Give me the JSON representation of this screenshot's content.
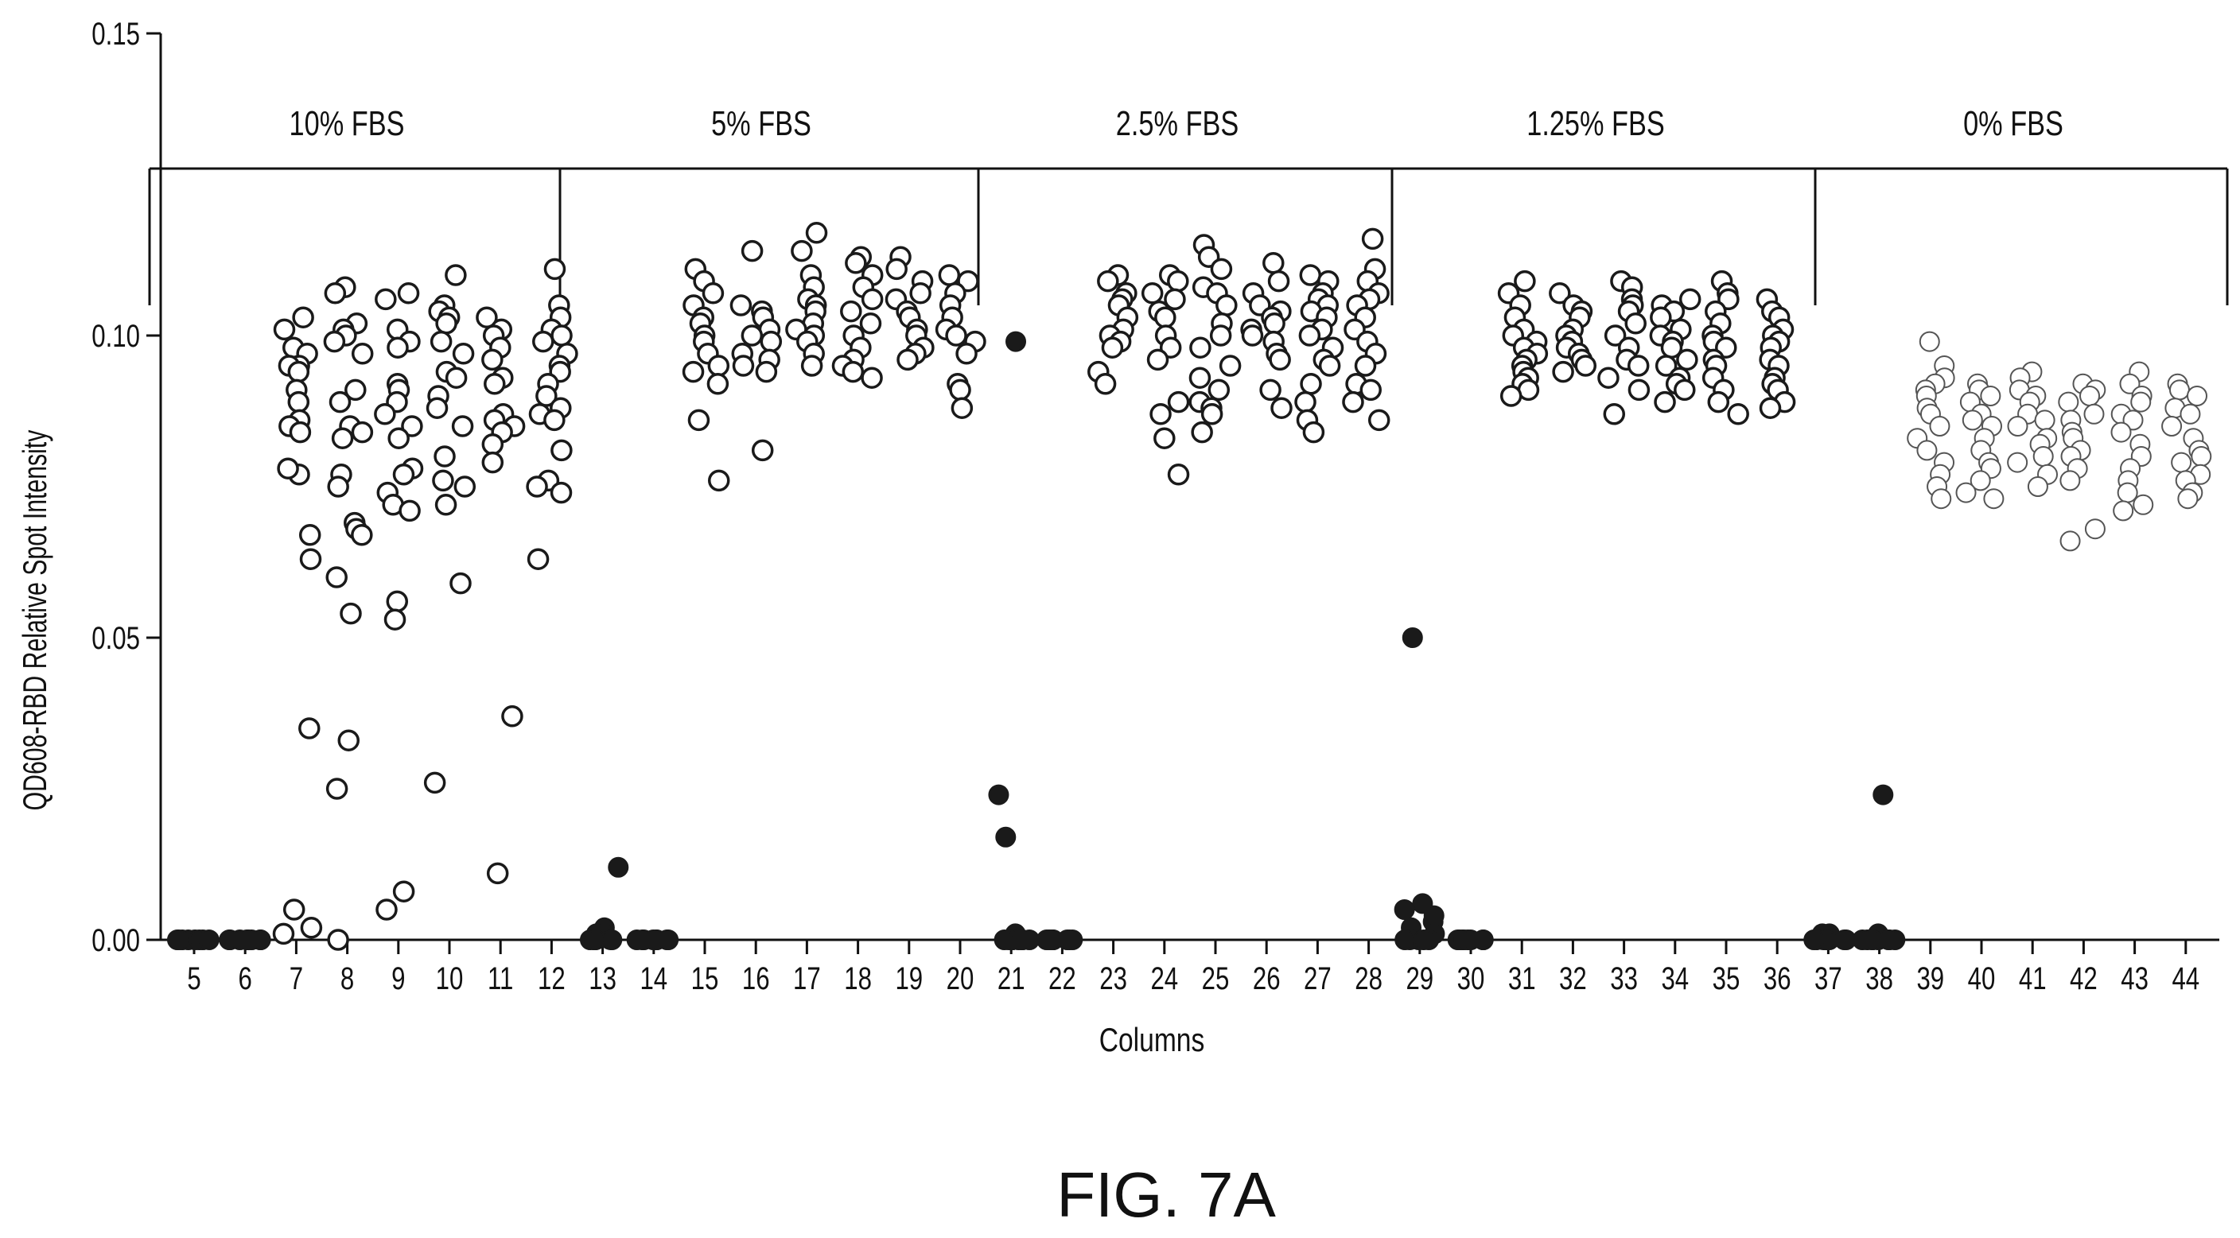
{
  "figure_label": "FIG. 7A",
  "chart_data": {
    "type": "scatter",
    "xlabel": "Columns",
    "ylabel": "QD608-RBD Relative Spot Intensity",
    "ylim": [
      0,
      0.15
    ],
    "yticks": [
      "0.00",
      "0.05",
      "0.10",
      "0.15"
    ],
    "categories": [
      "5",
      "6",
      "7",
      "8",
      "9",
      "10",
      "11",
      "12",
      "13",
      "14",
      "15",
      "16",
      "17",
      "18",
      "19",
      "20",
      "21",
      "22",
      "23",
      "24",
      "25",
      "26",
      "27",
      "28",
      "29",
      "30",
      "31",
      "32",
      "33",
      "34",
      "35",
      "36",
      "37",
      "38",
      "39",
      "40",
      "41",
      "42",
      "43",
      "44"
    ],
    "groups": [
      {
        "label": "10% FBS",
        "from": "5",
        "to": "12"
      },
      {
        "label": "5% FBS",
        "from": "13",
        "to": "20"
      },
      {
        "label": "2.5% FBS",
        "from": "21",
        "to": "28"
      },
      {
        "label": "1.25% FBS",
        "from": "29",
        "to": "36"
      },
      {
        "label": "0% FBS",
        "from": "37",
        "to": "44"
      }
    ],
    "grid": false,
    "legend": "none",
    "colors": {
      "open_marker_stroke": "#1a1a1a",
      "filled_marker": "#1a1a1a",
      "marker_fill_open": "#ffffff"
    },
    "series": [
      {
        "column": "5",
        "style": "filled",
        "values": [
          0,
          0,
          0,
          0,
          0,
          0,
          0,
          0
        ]
      },
      {
        "column": "6",
        "style": "filled",
        "values": [
          0,
          0,
          0,
          0,
          0,
          0,
          0,
          0
        ]
      },
      {
        "column": "7",
        "style": "open",
        "values": [
          0.103,
          0.101,
          0.098,
          0.097,
          0.095,
          0.095,
          0.094,
          0.091,
          0.089,
          0.086,
          0.085,
          0.084,
          0.077,
          0.078,
          0.067,
          0.063,
          0.035,
          0.005,
          0.002,
          0.001
        ]
      },
      {
        "column": "8",
        "style": "open",
        "values": [
          0.108,
          0.107,
          0.102,
          0.101,
          0.1,
          0.099,
          0.097,
          0.091,
          0.089,
          0.085,
          0.084,
          0.083,
          0.077,
          0.075,
          0.069,
          0.068,
          0.067,
          0.06,
          0.054,
          0.033,
          0.025,
          0
        ]
      },
      {
        "column": "9",
        "style": "open",
        "values": [
          0.107,
          0.106,
          0.101,
          0.099,
          0.098,
          0.092,
          0.091,
          0.089,
          0.087,
          0.085,
          0.083,
          0.078,
          0.077,
          0.074,
          0.072,
          0.071,
          0.056,
          0.053,
          0.008,
          0.005
        ]
      },
      {
        "column": "10",
        "style": "open",
        "values": [
          0.11,
          0.105,
          0.104,
          0.103,
          0.102,
          0.099,
          0.097,
          0.094,
          0.093,
          0.09,
          0.088,
          0.085,
          0.08,
          0.076,
          0.075,
          0.072,
          0.059,
          0.026
        ]
      },
      {
        "column": "11",
        "style": "open",
        "values": [
          0.103,
          0.101,
          0.1,
          0.098,
          0.096,
          0.093,
          0.092,
          0.087,
          0.086,
          0.085,
          0.084,
          0.082,
          0.079,
          0.037,
          0.011
        ]
      },
      {
        "column": "12",
        "style": "open",
        "values": [
          0.111,
          0.105,
          0.103,
          0.101,
          0.1,
          0.099,
          0.097,
          0.095,
          0.094,
          0.092,
          0.09,
          0.088,
          0.087,
          0.086,
          0.081,
          0.076,
          0.075,
          0.074,
          0.063
        ]
      },
      {
        "column": "13",
        "style": "filled",
        "values": [
          0.012,
          0.002,
          0.001,
          0.001,
          0,
          0,
          0,
          0,
          0,
          0
        ]
      },
      {
        "column": "14",
        "style": "filled",
        "values": [
          0,
          0,
          0,
          0,
          0,
          0,
          0,
          0
        ]
      },
      {
        "column": "15",
        "style": "open",
        "values": [
          0.111,
          0.109,
          0.107,
          0.105,
          0.103,
          0.102,
          0.1,
          0.099,
          0.097,
          0.095,
          0.094,
          0.092,
          0.086,
          0.076
        ]
      },
      {
        "column": "16",
        "style": "open",
        "values": [
          0.114,
          0.105,
          0.104,
          0.103,
          0.101,
          0.1,
          0.099,
          0.097,
          0.096,
          0.095,
          0.094,
          0.081
        ]
      },
      {
        "column": "17",
        "style": "open",
        "values": [
          0.117,
          0.114,
          0.11,
          0.108,
          0.106,
          0.105,
          0.104,
          0.102,
          0.101,
          0.1,
          0.099,
          0.097,
          0.095
        ]
      },
      {
        "column": "18",
        "style": "open",
        "values": [
          0.113,
          0.112,
          0.11,
          0.108,
          0.106,
          0.104,
          0.102,
          0.1,
          0.098,
          0.096,
          0.095,
          0.094,
          0.093
        ]
      },
      {
        "column": "19",
        "style": "open",
        "values": [
          0.113,
          0.111,
          0.109,
          0.107,
          0.106,
          0.104,
          0.103,
          0.101,
          0.1,
          0.098,
          0.097,
          0.096
        ]
      },
      {
        "column": "20",
        "style": "open",
        "values": [
          0.11,
          0.109,
          0.107,
          0.105,
          0.103,
          0.101,
          0.1,
          0.099,
          0.097,
          0.092,
          0.091,
          0.088
        ]
      },
      {
        "column": "21",
        "style": "filled",
        "values": [
          0.099,
          0.024,
          0.017,
          0.001,
          0,
          0,
          0,
          0,
          0,
          0,
          0,
          0
        ]
      },
      {
        "column": "22",
        "style": "filled",
        "values": [
          0,
          0,
          0,
          0,
          0,
          0,
          0,
          0
        ]
      },
      {
        "column": "23",
        "style": "open",
        "values": [
          0.11,
          0.109,
          0.107,
          0.106,
          0.105,
          0.103,
          0.101,
          0.1,
          0.099,
          0.098,
          0.094,
          0.092
        ]
      },
      {
        "column": "24",
        "style": "open",
        "values": [
          0.11,
          0.109,
          0.107,
          0.106,
          0.104,
          0.103,
          0.1,
          0.098,
          0.096,
          0.089,
          0.087,
          0.083,
          0.077
        ]
      },
      {
        "column": "25",
        "style": "open",
        "values": [
          0.115,
          0.113,
          0.111,
          0.108,
          0.107,
          0.105,
          0.102,
          0.1,
          0.098,
          0.095,
          0.093,
          0.091,
          0.089,
          0.088,
          0.087,
          0.084
        ]
      },
      {
        "column": "26",
        "style": "open",
        "values": [
          0.112,
          0.109,
          0.107,
          0.105,
          0.104,
          0.103,
          0.102,
          0.101,
          0.1,
          0.099,
          0.097,
          0.096,
          0.091,
          0.088
        ]
      },
      {
        "column": "27",
        "style": "open",
        "values": [
          0.11,
          0.109,
          0.107,
          0.106,
          0.105,
          0.104,
          0.103,
          0.101,
          0.1,
          0.098,
          0.096,
          0.095,
          0.092,
          0.089,
          0.086,
          0.084
        ]
      },
      {
        "column": "28",
        "style": "open",
        "values": [
          0.116,
          0.111,
          0.109,
          0.107,
          0.106,
          0.105,
          0.103,
          0.101,
          0.099,
          0.097,
          0.095,
          0.092,
          0.091,
          0.089,
          0.086
        ]
      },
      {
        "column": "29",
        "style": "filled",
        "values": [
          0.05,
          0.006,
          0.005,
          0.004,
          0.003,
          0.002,
          0.001,
          0,
          0,
          0,
          0,
          0
        ]
      },
      {
        "column": "30",
        "style": "filled",
        "values": [
          0,
          0,
          0,
          0,
          0,
          0,
          0,
          0
        ]
      },
      {
        "column": "31",
        "style": "open",
        "values": [
          0.109,
          0.107,
          0.105,
          0.103,
          0.101,
          0.1,
          0.099,
          0.098,
          0.097,
          0.096,
          0.095,
          0.094,
          0.093,
          0.092,
          0.091,
          0.09
        ]
      },
      {
        "column": "32",
        "style": "open",
        "values": [
          0.107,
          0.105,
          0.104,
          0.103,
          0.101,
          0.1,
          0.099,
          0.098,
          0.097,
          0.096,
          0.095,
          0.094
        ]
      },
      {
        "column": "33",
        "style": "open",
        "values": [
          0.109,
          0.108,
          0.106,
          0.105,
          0.104,
          0.102,
          0.1,
          0.098,
          0.096,
          0.095,
          0.093,
          0.091,
          0.087
        ]
      },
      {
        "column": "34",
        "style": "open",
        "values": [
          0.106,
          0.105,
          0.104,
          0.103,
          0.101,
          0.1,
          0.099,
          0.098,
          0.096,
          0.095,
          0.093,
          0.092,
          0.091,
          0.089
        ]
      },
      {
        "column": "35",
        "style": "open",
        "values": [
          0.109,
          0.107,
          0.106,
          0.104,
          0.102,
          0.1,
          0.099,
          0.098,
          0.096,
          0.095,
          0.093,
          0.091,
          0.089,
          0.087
        ]
      },
      {
        "column": "36",
        "style": "open",
        "values": [
          0.106,
          0.104,
          0.103,
          0.101,
          0.1,
          0.099,
          0.098,
          0.096,
          0.095,
          0.093,
          0.092,
          0.091,
          0.089,
          0.088
        ]
      },
      {
        "column": "37",
        "style": "filled",
        "values": [
          0.001,
          0.001,
          0,
          0,
          0,
          0,
          0,
          0,
          0,
          0
        ]
      },
      {
        "column": "38",
        "style": "filled",
        "values": [
          0.024,
          0.001,
          0,
          0,
          0,
          0,
          0,
          0,
          0,
          0
        ]
      },
      {
        "column": "39",
        "style": "open",
        "values": [
          0.099,
          0.095,
          0.093,
          0.092,
          0.091,
          0.09,
          0.088,
          0.087,
          0.085,
          0.083,
          0.081,
          0.079,
          0.077,
          0.075,
          0.073
        ]
      },
      {
        "column": "40",
        "style": "open",
        "values": [
          0.092,
          0.091,
          0.09,
          0.089,
          0.087,
          0.086,
          0.085,
          0.083,
          0.081,
          0.079,
          0.078,
          0.076,
          0.074,
          0.073
        ]
      },
      {
        "column": "41",
        "style": "open",
        "values": [
          0.094,
          0.093,
          0.091,
          0.09,
          0.089,
          0.087,
          0.086,
          0.085,
          0.083,
          0.082,
          0.08,
          0.079,
          0.077,
          0.075
        ]
      },
      {
        "column": "42",
        "style": "open",
        "values": [
          0.092,
          0.091,
          0.09,
          0.089,
          0.087,
          0.086,
          0.084,
          0.083,
          0.081,
          0.08,
          0.078,
          0.076,
          0.068,
          0.066
        ]
      },
      {
        "column": "43",
        "style": "open",
        "values": [
          0.094,
          0.092,
          0.09,
          0.089,
          0.087,
          0.086,
          0.084,
          0.082,
          0.08,
          0.078,
          0.076,
          0.074,
          0.072,
          0.071
        ]
      },
      {
        "column": "44",
        "style": "open",
        "values": [
          0.092,
          0.091,
          0.09,
          0.088,
          0.087,
          0.085,
          0.083,
          0.081,
          0.08,
          0.079,
          0.077,
          0.076,
          0.074,
          0.073
        ]
      }
    ]
  }
}
